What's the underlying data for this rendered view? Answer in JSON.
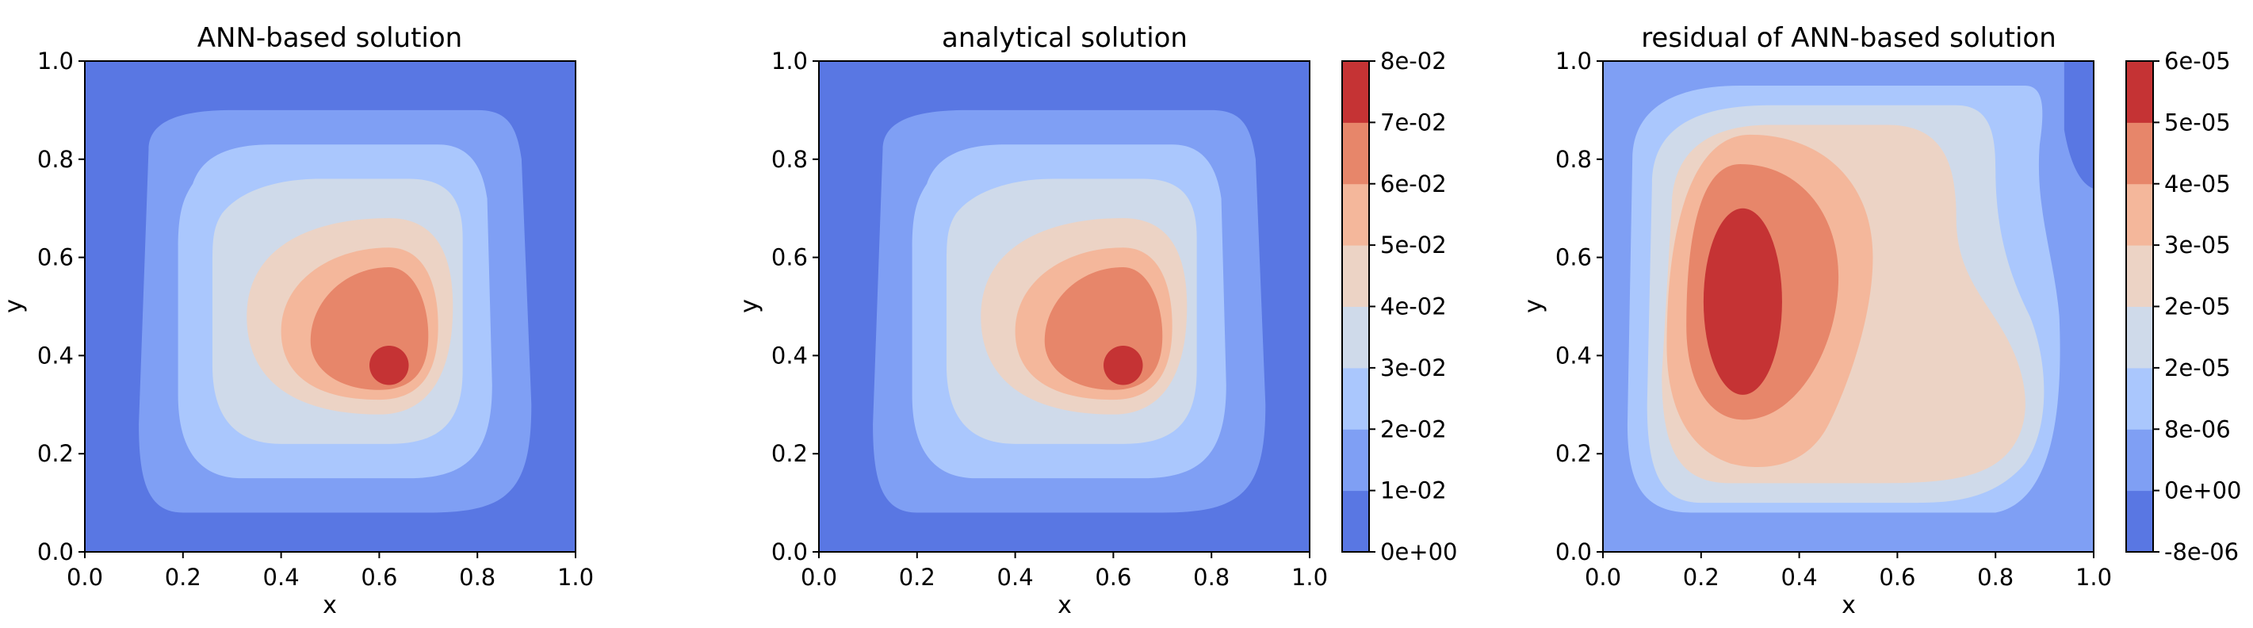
{
  "chart_data": [
    {
      "type": "contour",
      "title": "ANN-based solution",
      "xlabel": "x",
      "ylabel": "y",
      "xlim": [
        0.0,
        1.0
      ],
      "ylim": [
        0.0,
        1.0
      ],
      "xticks": [
        "0.0",
        "0.2",
        "0.4",
        "0.6",
        "0.8",
        "1.0"
      ],
      "yticks": [
        "0.0",
        "0.2",
        "0.4",
        "0.6",
        "0.8",
        "1.0"
      ],
      "levels": [
        0,
        0.01,
        0.02,
        0.03,
        0.04,
        0.05,
        0.06,
        0.07,
        0.08
      ],
      "peak": {
        "x": 0.62,
        "y": 0.38
      },
      "colorbar": false
    },
    {
      "type": "contour",
      "title": "analytical solution",
      "xlabel": "x",
      "ylabel": "y",
      "xlim": [
        0.0,
        1.0
      ],
      "ylim": [
        0.0,
        1.0
      ],
      "xticks": [
        "0.0",
        "0.2",
        "0.4",
        "0.6",
        "0.8",
        "1.0"
      ],
      "yticks": [
        "0.0",
        "0.2",
        "0.4",
        "0.6",
        "0.8",
        "1.0"
      ],
      "levels": [
        0,
        0.01,
        0.02,
        0.03,
        0.04,
        0.05,
        0.06,
        0.07,
        0.08
      ],
      "peak": {
        "x": 0.62,
        "y": 0.38
      },
      "colorbar": true,
      "colorbar_ticks": [
        "0e+00",
        "1e-02",
        "2e-02",
        "3e-02",
        "4e-02",
        "5e-02",
        "6e-02",
        "7e-02",
        "8e-02"
      ]
    },
    {
      "type": "contour",
      "title": "residual of ANN-based solution",
      "xlabel": "x",
      "ylabel": "y",
      "xlim": [
        0.0,
        1.0
      ],
      "ylim": [
        0.0,
        1.0
      ],
      "xticks": [
        "0.0",
        "0.2",
        "0.4",
        "0.6",
        "0.8",
        "1.0"
      ],
      "yticks": [
        "0.0",
        "0.2",
        "0.4",
        "0.6",
        "0.8",
        "1.0"
      ],
      "levels": [
        -8e-06,
        0,
        8e-06,
        2e-05,
        2e-05,
        3e-05,
        4e-05,
        5e-05,
        6e-05
      ],
      "peak": {
        "x": 0.28,
        "y": 0.51
      },
      "colorbar": true,
      "colorbar_ticks": [
        "-8e-06",
        "0e+00",
        "8e-06",
        "2e-05",
        "2e-05",
        "3e-05",
        "4e-05",
        "5e-05",
        "6e-05"
      ]
    }
  ],
  "palette": [
    "#5977e3",
    "#7f9ff4",
    "#aac7fd",
    "#cfdaea",
    "#ecd3c5",
    "#f4b79b",
    "#e7866a",
    "#c53334"
  ]
}
